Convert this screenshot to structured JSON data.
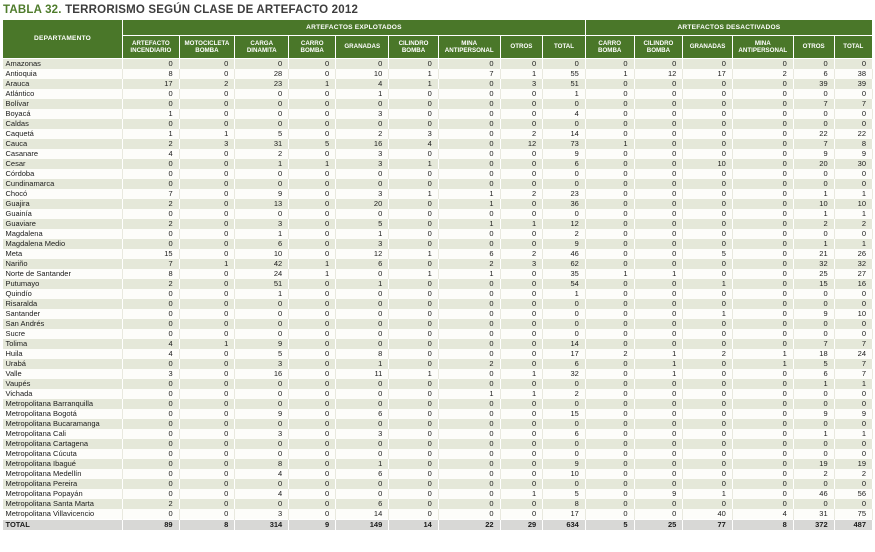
{
  "title": {
    "prefix": "TABLA 32.",
    "text": " TERRORISMO SEGÚN CLASE DE ARTEFACTO 2012"
  },
  "colors": {
    "header_green": "#4a7729",
    "title_green": "#4f7c2c",
    "stripe": "#e5e8d9",
    "total_row_bg": "#d8d8d6"
  },
  "table": {
    "department_header": "DEPARTAMENTO",
    "groups": [
      {
        "label": "ARTEFACTOS EXPLOTADOS",
        "span": 9
      },
      {
        "label": "ARTEFACTOS DESACTIVADOS",
        "span": 6
      }
    ],
    "columns": [
      "ARTEFACTO INCENDIARIO",
      "MOTOCICLETA BOMBA",
      "CARGA DINAMITA",
      "CARRO BOMBA",
      "GRANADAS",
      "CILINDRO BOMBA",
      "MINA ANTIPERSONAL",
      "OTROS",
      "TOTAL",
      "CARRO BOMBA",
      "CILINDRO BOMBA",
      "GRANADAS",
      "MINA ANTIPERSONAL",
      "OTROS",
      "TOTAL"
    ],
    "rows": [
      {
        "name": "Amazonas",
        "values": [
          0,
          0,
          0,
          0,
          0,
          0,
          0,
          0,
          0,
          0,
          0,
          0,
          0,
          0,
          0
        ]
      },
      {
        "name": "Antioquia",
        "values": [
          8,
          0,
          28,
          0,
          10,
          1,
          7,
          1,
          55,
          1,
          12,
          17,
          2,
          6,
          38
        ]
      },
      {
        "name": "Arauca",
        "values": [
          17,
          2,
          23,
          1,
          4,
          1,
          0,
          3,
          51,
          0,
          0,
          0,
          0,
          39,
          39
        ]
      },
      {
        "name": "Atlántico",
        "values": [
          0,
          0,
          0,
          0,
          1,
          0,
          0,
          0,
          1,
          0,
          0,
          0,
          0,
          0,
          0
        ]
      },
      {
        "name": "Bolívar",
        "values": [
          0,
          0,
          0,
          0,
          0,
          0,
          0,
          0,
          0,
          0,
          0,
          0,
          0,
          7,
          7
        ]
      },
      {
        "name": "Boyacá",
        "values": [
          1,
          0,
          0,
          0,
          3,
          0,
          0,
          0,
          4,
          0,
          0,
          0,
          0,
          0,
          0
        ]
      },
      {
        "name": "Caldas",
        "values": [
          0,
          0,
          0,
          0,
          0,
          0,
          0,
          0,
          0,
          0,
          0,
          0,
          0,
          0,
          0
        ]
      },
      {
        "name": "Caquetá",
        "values": [
          1,
          1,
          5,
          0,
          2,
          3,
          0,
          2,
          14,
          0,
          0,
          0,
          0,
          22,
          22
        ]
      },
      {
        "name": "Cauca",
        "values": [
          2,
          3,
          31,
          5,
          16,
          4,
          0,
          12,
          73,
          1,
          0,
          0,
          0,
          7,
          8
        ]
      },
      {
        "name": "Casanare",
        "values": [
          4,
          0,
          2,
          0,
          3,
          0,
          0,
          0,
          9,
          0,
          0,
          0,
          0,
          9,
          9
        ]
      },
      {
        "name": "Cesar",
        "values": [
          0,
          0,
          1,
          1,
          3,
          1,
          0,
          0,
          6,
          0,
          0,
          10,
          0,
          20,
          30
        ]
      },
      {
        "name": "Córdoba",
        "values": [
          0,
          0,
          0,
          0,
          0,
          0,
          0,
          0,
          0,
          0,
          0,
          0,
          0,
          0,
          0
        ]
      },
      {
        "name": "Cundinamarca",
        "values": [
          0,
          0,
          0,
          0,
          0,
          0,
          0,
          0,
          0,
          0,
          0,
          0,
          0,
          0,
          0
        ]
      },
      {
        "name": "Chocó",
        "values": [
          7,
          0,
          9,
          0,
          3,
          1,
          1,
          2,
          23,
          0,
          0,
          0,
          0,
          1,
          1
        ]
      },
      {
        "name": "Guajira",
        "values": [
          2,
          0,
          13,
          0,
          20,
          0,
          1,
          0,
          36,
          0,
          0,
          0,
          0,
          10,
          10
        ]
      },
      {
        "name": "Guainía",
        "values": [
          0,
          0,
          0,
          0,
          0,
          0,
          0,
          0,
          0,
          0,
          0,
          0,
          0,
          1,
          1
        ]
      },
      {
        "name": "Guaviare",
        "values": [
          2,
          0,
          3,
          0,
          5,
          0,
          1,
          1,
          12,
          0,
          0,
          0,
          0,
          2,
          2
        ]
      },
      {
        "name": "Magdalena",
        "values": [
          0,
          0,
          1,
          0,
          1,
          0,
          0,
          0,
          2,
          0,
          0,
          0,
          0,
          0,
          0
        ]
      },
      {
        "name": "Magdalena Medio",
        "values": [
          0,
          0,
          6,
          0,
          3,
          0,
          0,
          0,
          9,
          0,
          0,
          0,
          0,
          1,
          1
        ]
      },
      {
        "name": "Meta",
        "values": [
          15,
          0,
          10,
          0,
          12,
          1,
          6,
          2,
          46,
          0,
          0,
          5,
          0,
          21,
          26
        ]
      },
      {
        "name": "Nariño",
        "values": [
          7,
          1,
          42,
          1,
          6,
          0,
          2,
          3,
          62,
          0,
          0,
          0,
          0,
          32,
          32
        ]
      },
      {
        "name": "Norte de Santander",
        "values": [
          8,
          0,
          24,
          1,
          0,
          1,
          1,
          0,
          35,
          1,
          1,
          0,
          0,
          25,
          27
        ]
      },
      {
        "name": "Putumayo",
        "values": [
          2,
          0,
          51,
          0,
          1,
          0,
          0,
          0,
          54,
          0,
          0,
          1,
          0,
          15,
          16
        ]
      },
      {
        "name": "Quindío",
        "values": [
          0,
          0,
          1,
          0,
          0,
          0,
          0,
          0,
          1,
          0,
          0,
          0,
          0,
          0,
          0
        ]
      },
      {
        "name": "Risaralda",
        "values": [
          0,
          0,
          0,
          0,
          0,
          0,
          0,
          0,
          0,
          0,
          0,
          0,
          0,
          0,
          0
        ]
      },
      {
        "name": "Santander",
        "values": [
          0,
          0,
          0,
          0,
          0,
          0,
          0,
          0,
          0,
          0,
          0,
          1,
          0,
          9,
          10
        ]
      },
      {
        "name": "San Andrés",
        "values": [
          0,
          0,
          0,
          0,
          0,
          0,
          0,
          0,
          0,
          0,
          0,
          0,
          0,
          0,
          0
        ]
      },
      {
        "name": "Sucre",
        "values": [
          0,
          0,
          0,
          0,
          0,
          0,
          0,
          0,
          0,
          0,
          0,
          0,
          0,
          0,
          0
        ]
      },
      {
        "name": "Tolima",
        "values": [
          4,
          1,
          9,
          0,
          0,
          0,
          0,
          0,
          14,
          0,
          0,
          0,
          0,
          7,
          7
        ]
      },
      {
        "name": "Huila",
        "values": [
          4,
          0,
          5,
          0,
          8,
          0,
          0,
          0,
          17,
          2,
          1,
          2,
          1,
          18,
          24
        ]
      },
      {
        "name": "Urabá",
        "values": [
          0,
          0,
          3,
          0,
          1,
          0,
          2,
          0,
          6,
          0,
          1,
          0,
          1,
          5,
          7
        ]
      },
      {
        "name": "Valle",
        "values": [
          3,
          0,
          16,
          0,
          11,
          1,
          0,
          1,
          32,
          0,
          1,
          0,
          0,
          6,
          7
        ]
      },
      {
        "name": "Vaupés",
        "values": [
          0,
          0,
          0,
          0,
          0,
          0,
          0,
          0,
          0,
          0,
          0,
          0,
          0,
          1,
          1
        ]
      },
      {
        "name": "Vichada",
        "values": [
          0,
          0,
          0,
          0,
          0,
          0,
          1,
          1,
          2,
          0,
          0,
          0,
          0,
          0,
          0
        ]
      },
      {
        "name": "Metropolitana Barranquilla",
        "values": [
          0,
          0,
          0,
          0,
          0,
          0,
          0,
          0,
          0,
          0,
          0,
          0,
          0,
          0,
          0
        ]
      },
      {
        "name": "Metropolitana Bogotá",
        "values": [
          0,
          0,
          9,
          0,
          6,
          0,
          0,
          0,
          15,
          0,
          0,
          0,
          0,
          9,
          9
        ]
      },
      {
        "name": "Metropolitana Bucaramanga",
        "values": [
          0,
          0,
          0,
          0,
          0,
          0,
          0,
          0,
          0,
          0,
          0,
          0,
          0,
          0,
          0
        ]
      },
      {
        "name": "Metropolitana Cali",
        "values": [
          0,
          0,
          3,
          0,
          3,
          0,
          0,
          0,
          6,
          0,
          0,
          0,
          0,
          1,
          1
        ]
      },
      {
        "name": "Metropolitana Cartagena",
        "values": [
          0,
          0,
          0,
          0,
          0,
          0,
          0,
          0,
          0,
          0,
          0,
          0,
          0,
          0,
          0
        ]
      },
      {
        "name": "Metropolitana Cúcuta",
        "values": [
          0,
          0,
          0,
          0,
          0,
          0,
          0,
          0,
          0,
          0,
          0,
          0,
          0,
          0,
          0
        ]
      },
      {
        "name": "Metropolitana Ibagué",
        "values": [
          0,
          0,
          8,
          0,
          1,
          0,
          0,
          0,
          9,
          0,
          0,
          0,
          0,
          19,
          19
        ]
      },
      {
        "name": "Metropolitana Medellín",
        "values": [
          0,
          0,
          4,
          0,
          6,
          0,
          0,
          0,
          10,
          0,
          0,
          0,
          0,
          2,
          2
        ]
      },
      {
        "name": "Metropolitana Pereira",
        "values": [
          0,
          0,
          0,
          0,
          0,
          0,
          0,
          0,
          0,
          0,
          0,
          0,
          0,
          0,
          0
        ]
      },
      {
        "name": "Metropolitana Popayán",
        "values": [
          0,
          0,
          4,
          0,
          0,
          0,
          0,
          1,
          5,
          0,
          9,
          1,
          0,
          46,
          56
        ]
      },
      {
        "name": "Metropolitana Santa Marta",
        "values": [
          2,
          0,
          0,
          0,
          6,
          0,
          0,
          0,
          8,
          0,
          0,
          0,
          0,
          0,
          0
        ]
      },
      {
        "name": "Metropolitana Villavicencio",
        "values": [
          0,
          0,
          3,
          0,
          14,
          0,
          0,
          0,
          17,
          0,
          0,
          40,
          4,
          31,
          75
        ]
      }
    ],
    "total_row": {
      "name": "TOTAL",
      "values": [
        89,
        8,
        314,
        9,
        149,
        14,
        22,
        29,
        634,
        5,
        25,
        77,
        8,
        372,
        487
      ]
    }
  }
}
